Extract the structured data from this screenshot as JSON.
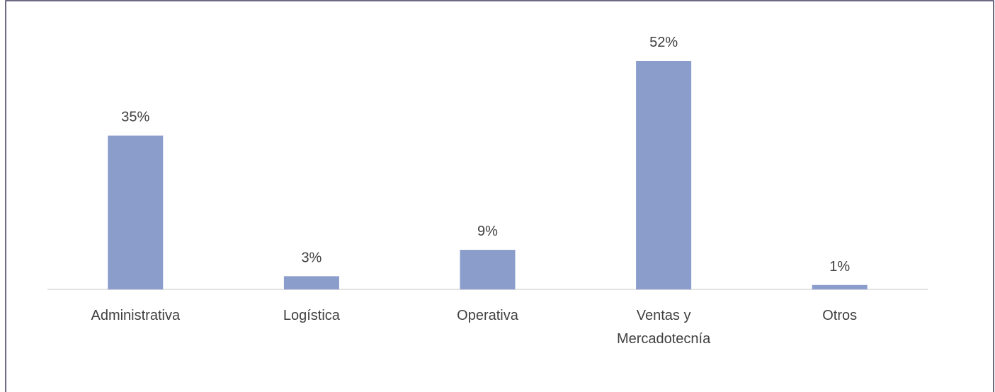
{
  "chart_data": {
    "type": "bar",
    "categories": [
      "Administrativa",
      "Logística",
      "Operativa",
      "Ventas y Mercadotecnía",
      "Otros"
    ],
    "values": [
      35,
      3,
      9,
      52,
      1
    ],
    "value_labels": [
      "35%",
      "3%",
      "9%",
      "52%",
      "1%"
    ],
    "color": "#8b9dcb"
  }
}
